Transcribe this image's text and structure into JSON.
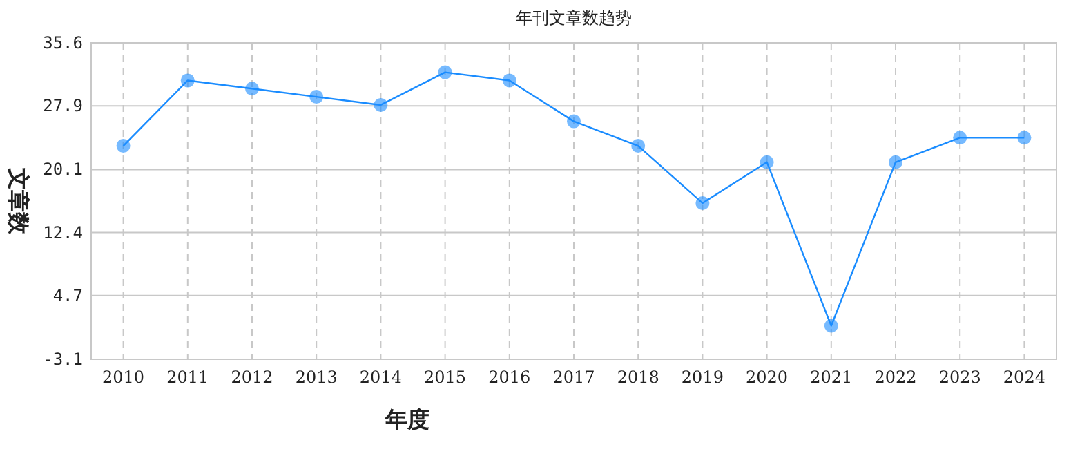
{
  "chart_data": {
    "type": "line",
    "title": "年刊文章数趋势",
    "xlabel": "年度",
    "ylabel": "文章数",
    "categories": [
      "2010",
      "2011",
      "2012",
      "2013",
      "2014",
      "2015",
      "2016",
      "2017",
      "2018",
      "2019",
      "2020",
      "2021",
      "2022",
      "2023",
      "2024"
    ],
    "series": [
      {
        "color": "#1a8cff",
        "values": [
          23,
          31,
          30,
          29,
          28,
          32,
          31,
          26,
          23,
          16,
          21,
          1,
          21,
          24,
          24
        ]
      }
    ],
    "ylim": [
      -3.1,
      35.6
    ],
    "yticks": [
      -3.1,
      4.7,
      12.4,
      20.1,
      27.9,
      35.6
    ],
    "grid": true,
    "marker": "circle",
    "line_style": "solid"
  }
}
